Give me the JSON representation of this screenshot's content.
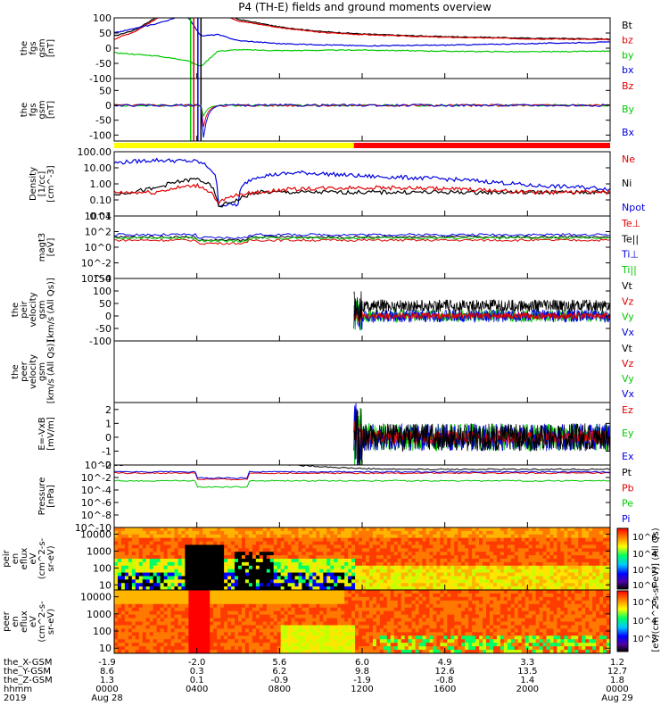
{
  "title": "P4 (TH-E) fields and ground moments overview",
  "colors": {
    "black": "#000000",
    "red": "#e00000",
    "green": "#00c800",
    "blue": "#0000e0",
    "yellow": "#ffff00",
    "bar_red": "#ff0000"
  },
  "panels": [
    {
      "id": "fgs-gsm",
      "ylabel": [
        "the",
        "fgs",
        "gsm",
        "[nT]"
      ],
      "yticks": [
        "100",
        "50",
        "0",
        "-50",
        "-100"
      ],
      "yrange": [
        -100,
        100
      ],
      "log": false,
      "legend": [
        {
          "text": "Bt",
          "color": "black"
        },
        {
          "text": "bz",
          "color": "red"
        },
        {
          "text": "by",
          "color": "green"
        },
        {
          "text": "bx",
          "color": "blue"
        }
      ]
    },
    {
      "id": "fgs-gsm-dsl",
      "ylabel": [
        "the",
        "fgs",
        "gsm",
        "[nT]"
      ],
      "yticks": [
        "50",
        "0",
        "-50",
        "-100"
      ],
      "yrange": [
        -120,
        90
      ],
      "log": false,
      "legend": [
        {
          "text": "Bz",
          "color": "red"
        },
        {
          "text": "By",
          "color": "green"
        },
        {
          "text": "Bx",
          "color": "blue"
        }
      ]
    },
    {
      "id": "density",
      "ylabel": [
        "Density",
        "[1/cc]",
        "[cm^-3]"
      ],
      "yticks": [
        "100.00",
        "10.00",
        "1.00",
        "0.10",
        "0.01"
      ],
      "yrange": [
        0.01,
        100
      ],
      "log": true,
      "legend": [
        {
          "text": "Ne",
          "color": "red"
        },
        {
          "text": "Ni",
          "color": "black"
        },
        {
          "text": "Npot",
          "color": "blue"
        }
      ]
    },
    {
      "id": "temperature",
      "ylabel": [
        "magt3",
        "[eV]"
      ],
      "yticks": [
        "10^4",
        "10^2",
        "10^0",
        "10^-2",
        "10^-4"
      ],
      "yrange": [
        0.0001,
        10000
      ],
      "log": true,
      "legend": [
        {
          "text": "Te⊥",
          "color": "red"
        },
        {
          "text": "Te||",
          "color": "black"
        },
        {
          "text": "Ti⊥",
          "color": "blue"
        },
        {
          "text": "Ti||",
          "color": "green"
        }
      ]
    },
    {
      "id": "peir-velocity",
      "ylabel": [
        "the",
        "peir",
        "velocity",
        "gsm",
        "[km/s (All Qs)]"
      ],
      "yticks": [
        "150",
        "100",
        "50",
        "0",
        "-50",
        "-100"
      ],
      "yrange": [
        -100,
        150
      ],
      "log": false,
      "legend": [
        {
          "text": "Vt",
          "color": "black"
        },
        {
          "text": "Vz",
          "color": "red"
        },
        {
          "text": "Vy",
          "color": "green"
        },
        {
          "text": "Vx",
          "color": "blue"
        }
      ]
    },
    {
      "id": "peer-velocity",
      "ylabel": [
        "the",
        "peer",
        "velocity",
        "gsm",
        "[km/s (All Qs)]"
      ],
      "yticks": [],
      "yrange": [
        -100,
        100
      ],
      "log": false,
      "legend": [
        {
          "text": "Vt",
          "color": "black"
        },
        {
          "text": "Vz",
          "color": "red"
        },
        {
          "text": "Vy",
          "color": "green"
        },
        {
          "text": "Vx",
          "color": "blue"
        }
      ]
    },
    {
      "id": "efield",
      "ylabel": [
        "E=-VxB",
        "[mV/m]"
      ],
      "yticks": [
        "2",
        "1",
        "0",
        "-1",
        "-2"
      ],
      "yrange": [
        -2,
        2.5
      ],
      "log": false,
      "legend": [
        {
          "text": "Ez",
          "color": "red"
        },
        {
          "text": "Ey",
          "color": "green"
        },
        {
          "text": "Ex",
          "color": "blue"
        }
      ]
    },
    {
      "id": "pressure",
      "ylabel": [
        "Pressure",
        "[nPa]"
      ],
      "yticks": [
        "10^0",
        "10^-2",
        "10^-4",
        "10^-6",
        "10^-8",
        "10^-10"
      ],
      "yrange": [
        1e-10,
        1
      ],
      "log": true,
      "legend": [
        {
          "text": "Pt",
          "color": "black"
        },
        {
          "text": "Pb",
          "color": "red"
        },
        {
          "text": "Pe",
          "color": "green"
        },
        {
          "text": "Pi",
          "color": "blue"
        }
      ]
    },
    {
      "id": "peir-eflux",
      "ylabel": [
        "the",
        "peir",
        "en",
        "eflux",
        "eV",
        "(cm^2-s-",
        "sr-eV)"
      ],
      "yticks": [
        "10000",
        "1000",
        "100",
        "10"
      ],
      "yrange": [
        5,
        25000
      ],
      "log": true,
      "legend": []
    },
    {
      "id": "peer-eflux",
      "ylabel": [
        "the",
        "peer",
        "en",
        "eflux",
        "eV",
        "(cm^2-s-",
        "sr-eV)"
      ],
      "yticks": [
        "10000",
        "1000",
        "100",
        "10"
      ],
      "yrange": [
        5,
        25000
      ],
      "log": true,
      "legend": []
    }
  ],
  "colorbar": {
    "ticks": [
      "10^6",
      "10^4",
      "10^2",
      "10^0",
      "10^6",
      "10^4",
      "10^2"
    ],
    "label": "[eV/(cm^2-s-sr-eV)] (All Qs)"
  },
  "x_axis": {
    "rows": [
      {
        "label": "the_X-GSM",
        "values": [
          "-1.9",
          "-2.0",
          "5.6",
          "6.0",
          "4.9",
          "3.3",
          "1.2"
        ]
      },
      {
        "label": "the_Y-GSM",
        "values": [
          "8.6",
          "0.3",
          "6.2",
          "9.8",
          "12.6",
          "13.5",
          "12.7"
        ]
      },
      {
        "label": "the_Z-GSM",
        "values": [
          "1.3",
          "0.1",
          "-0.9",
          "-1.9",
          "-0.8",
          "1.4",
          "1.8"
        ]
      },
      {
        "label": "hhmm",
        "values": [
          "0000",
          "0400",
          "0800",
          "1200",
          "1600",
          "2000",
          "0000"
        ]
      },
      {
        "label": "2019",
        "values": [
          "Aug 28",
          "",
          "",
          "",
          "",
          "",
          "Aug 29"
        ]
      }
    ],
    "hours": [
      0,
      4,
      8,
      12,
      16,
      20,
      24
    ]
  },
  "chart_data": {
    "type": "line",
    "title": "P4 (TH-E) fields and ground moments overview",
    "x_unit": "hours UT from 2019-08-28 00:00",
    "x_range": [
      0,
      24
    ],
    "status_bar": [
      {
        "from": 0,
        "to": 11.6,
        "color": "yellow"
      },
      {
        "from": 11.6,
        "to": 24,
        "color": "red"
      }
    ],
    "series": [
      {
        "panel": "fgs-gsm",
        "name": "Bt",
        "x": [
          0,
          1,
          2,
          3,
          4,
          6,
          8,
          10,
          12,
          14,
          16,
          18,
          20,
          22,
          24
        ],
        "y": [
          40,
          60,
          100,
          140,
          160,
          95,
          70,
          55,
          47,
          42,
          38,
          36,
          33,
          32,
          30
        ]
      },
      {
        "panel": "fgs-gsm",
        "name": "bz",
        "x": [
          0,
          1,
          2,
          3,
          4,
          6,
          8,
          10,
          12,
          14,
          16,
          18,
          20,
          22,
          24
        ],
        "y": [
          30,
          55,
          95,
          130,
          150,
          90,
          68,
          52,
          45,
          40,
          36,
          34,
          31,
          30,
          28
        ]
      },
      {
        "panel": "fgs-gsm",
        "name": "by",
        "x": [
          0,
          2,
          3.5,
          4.2,
          5,
          6,
          8,
          12,
          16,
          20,
          24
        ],
        "y": [
          -15,
          -25,
          -40,
          -60,
          -10,
          -5,
          -8,
          -6,
          -10,
          -12,
          -10
        ]
      },
      {
        "panel": "fgs-gsm",
        "name": "bx",
        "x": [
          0,
          2,
          3.5,
          4.2,
          5,
          6,
          8,
          12,
          16,
          20,
          24
        ],
        "y": [
          50,
          80,
          110,
          40,
          45,
          25,
          15,
          8,
          10,
          15,
          20
        ]
      },
      {
        "panel": "density",
        "name": "Npot",
        "x": [
          0,
          2,
          4,
          5,
          6,
          7,
          9,
          12,
          16,
          20,
          24
        ],
        "y": [
          20,
          30,
          25,
          0.05,
          0.05,
          3,
          5,
          3,
          2,
          0.8,
          0.5
        ]
      },
      {
        "panel": "density",
        "name": "Ni",
        "x": [
          0,
          2,
          4,
          5,
          6,
          7,
          9,
          12,
          16,
          20,
          24
        ],
        "y": [
          0.2,
          0.5,
          2,
          0.03,
          0.1,
          0.3,
          0.3,
          0.3,
          0.3,
          0.3,
          0.3
        ]
      },
      {
        "panel": "density",
        "name": "Ne",
        "x": [
          0,
          2,
          4,
          5,
          6,
          7,
          9,
          12,
          16,
          20,
          24
        ],
        "y": [
          0.3,
          0.3,
          0.8,
          0.05,
          0.2,
          0.3,
          0.5,
          0.6,
          0.5,
          0.3,
          0.3
        ]
      }
    ]
  }
}
